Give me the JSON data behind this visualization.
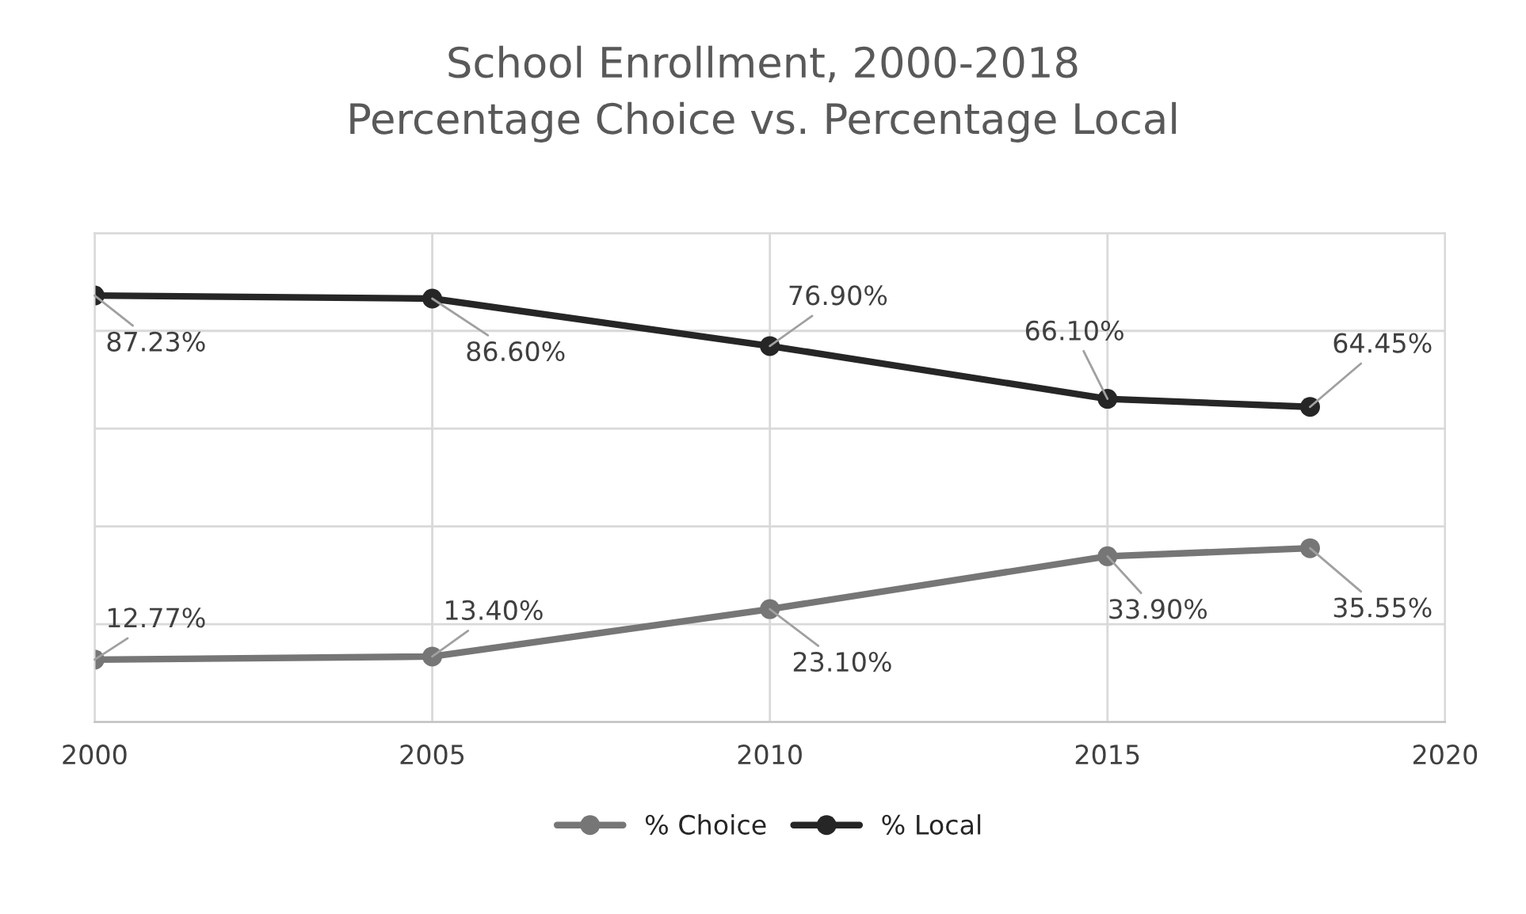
{
  "chart_data": {
    "type": "line",
    "title": "School Enrollment, 2000-2018\nPercentage Choice vs. Percentage Local",
    "x": [
      2000,
      2005,
      2010,
      2015,
      2018
    ],
    "series": [
      {
        "name": "% Choice",
        "color": "#767676",
        "values": [
          12.77,
          13.4,
          23.1,
          33.9,
          35.55
        ],
        "value_labels": [
          "12.77%",
          "13.40%",
          "23.10%",
          "33.90%",
          "35.55%"
        ]
      },
      {
        "name": "% Local",
        "color": "#262626",
        "values": [
          87.23,
          86.6,
          76.9,
          66.1,
          64.45
        ],
        "value_labels": [
          "87.23%",
          "86.60%",
          "76.90%",
          "66.10%",
          "64.45%"
        ]
      }
    ],
    "xlim": [
      2000,
      2020
    ],
    "xticks": [
      2000,
      2005,
      2010,
      2015,
      2020
    ],
    "ylim": [
      0,
      100
    ],
    "yticks": [
      {
        "value": 0,
        "label": null
      },
      {
        "value": 20,
        "label": null
      },
      {
        "value": 40,
        "label": null
      },
      {
        "value": 60,
        "label": null
      },
      {
        "value": 80,
        "label": null
      },
      {
        "value": 100,
        "label": null
      }
    ],
    "tick_labels": "x",
    "grid": true,
    "legend": "bottom",
    "marker": "circle",
    "line_style": "solid"
  }
}
